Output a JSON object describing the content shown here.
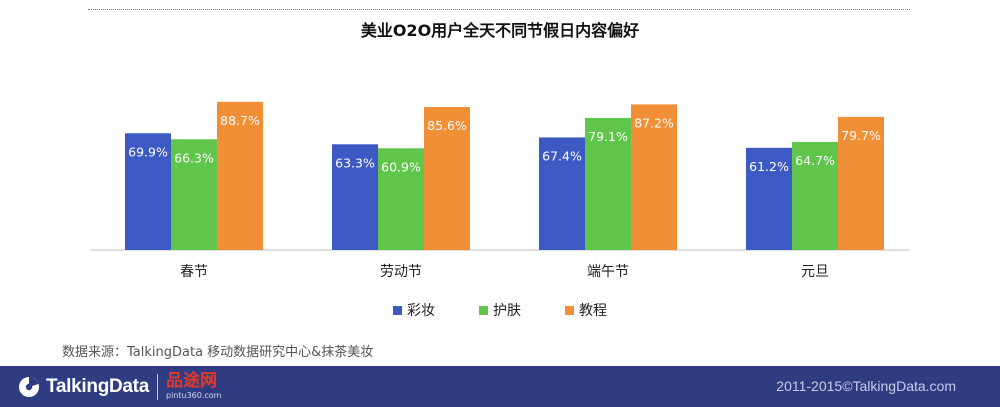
{
  "chart_data": {
    "type": "bar",
    "title": "美业O2O用户全天不同节假日内容偏好",
    "categories": [
      "春节",
      "劳动节",
      "端午节",
      "元旦"
    ],
    "series": [
      {
        "name": "彩妆",
        "color": "#3c59c4",
        "values": [
          69.9,
          63.3,
          67.4,
          61.2
        ],
        "labels": [
          "69.9%",
          "63.3%",
          "67.4%",
          "61.2%"
        ]
      },
      {
        "name": "护肤",
        "color": "#5fc64b",
        "values": [
          66.3,
          60.9,
          79.1,
          64.7
        ],
        "labels": [
          "66.3%",
          "60.9%",
          "79.1%",
          "64.7%"
        ]
      },
      {
        "name": "教程",
        "color": "#f18f37",
        "values": [
          88.7,
          85.6,
          87.2,
          79.7
        ],
        "labels": [
          "88.7%",
          "85.6%",
          "87.2%",
          "79.7%"
        ]
      }
    ],
    "value_unit": "%",
    "ylim": [
      0,
      100
    ],
    "grid": false,
    "legend_position": "bottom"
  },
  "source_text": "数据来源：TalkingData 移动数据研究中心&抹茶美妆",
  "footer": {
    "brand": "TalkingData",
    "watermark_cn": "品途网",
    "watermark_en": "pintu360.com",
    "copyright": "2011-2015©TalkingData.com",
    "background_color": "#2f3c82"
  }
}
